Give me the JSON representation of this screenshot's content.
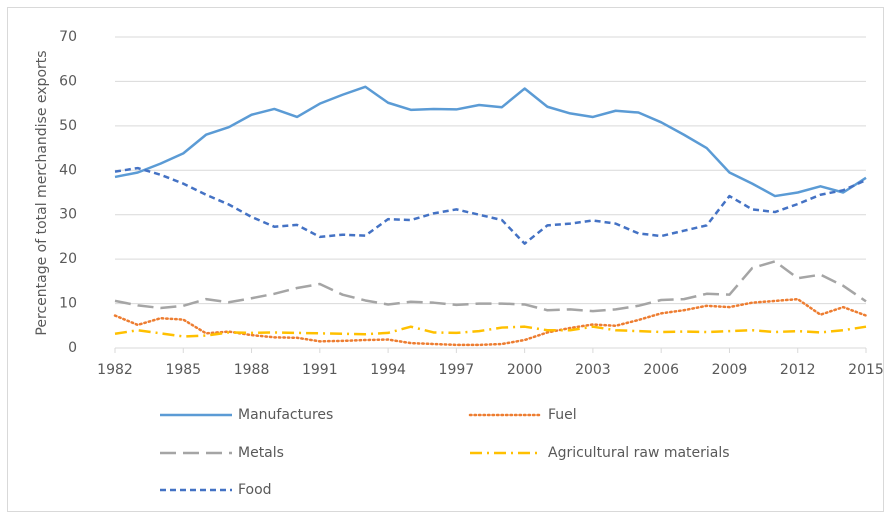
{
  "chart_data": {
    "type": "line",
    "y_label": "Percentage of total merchandise exports",
    "x": [
      1982,
      1983,
      1984,
      1985,
      1986,
      1987,
      1988,
      1989,
      1990,
      1991,
      1992,
      1993,
      1994,
      1995,
      1996,
      1997,
      1998,
      1999,
      2000,
      2001,
      2002,
      2003,
      2004,
      2005,
      2006,
      2007,
      2008,
      2009,
      2010,
      2011,
      2012,
      2013,
      2014,
      2015
    ],
    "xlim": [
      1982,
      2015
    ],
    "xticks": [
      1982,
      1985,
      1988,
      1991,
      1994,
      1997,
      2000,
      2003,
      2006,
      2009,
      2012,
      2015
    ],
    "ylim": [
      0,
      70
    ],
    "yticks": [
      0,
      10,
      20,
      30,
      40,
      50,
      60,
      70
    ],
    "grid": true,
    "legend": "bottom",
    "series": [
      {
        "name": "Manufactures",
        "color": "#5b9bd5",
        "dash": "solid",
        "values": [
          38.5,
          39.5,
          41.5,
          43.8,
          48,
          49.7,
          52.5,
          53.8,
          52,
          55,
          57,
          58.8,
          55.2,
          53.6,
          53.8,
          53.7,
          54.7,
          54.2,
          58.4,
          54.3,
          52.8,
          52,
          53.4,
          53,
          50.8,
          48,
          45,
          39.5,
          37,
          34.2,
          35,
          36.4,
          35,
          38.3
        ]
      },
      {
        "name": "Fuel",
        "color": "#ed7d31",
        "dash": "dotted",
        "values": [
          7.3,
          5.2,
          6.7,
          6.4,
          3.3,
          3.7,
          2.9,
          2.4,
          2.3,
          1.5,
          1.6,
          1.8,
          1.9,
          1.1,
          0.9,
          0.7,
          0.7,
          0.9,
          1.8,
          3.5,
          4.5,
          5.3,
          5,
          6.3,
          7.8,
          8.5,
          9.5,
          9.2,
          10.2,
          10.6,
          11,
          7.5,
          9.2,
          7.3
        ]
      },
      {
        "name": "Metals",
        "color": "#a5a5a5",
        "dash": "long-dash",
        "values": [
          10.6,
          9.6,
          9,
          9.5,
          11,
          10.3,
          11.2,
          12.2,
          13.5,
          14.4,
          12,
          10.7,
          9.8,
          10.4,
          10.2,
          9.7,
          10,
          10,
          9.8,
          8.5,
          8.7,
          8.3,
          8.7,
          9.5,
          10.8,
          11,
          12.2,
          12,
          18,
          19.5,
          15.7,
          16.5,
          14,
          10.5
        ]
      },
      {
        "name": "Agricultural raw materials",
        "color": "#ffc000",
        "dash": "dash-dot",
        "values": [
          3.2,
          4,
          3.3,
          2.6,
          2.8,
          3.5,
          3.4,
          3.5,
          3.4,
          3.3,
          3.2,
          3.1,
          3.4,
          4.8,
          3.5,
          3.4,
          3.8,
          4.6,
          4.8,
          4,
          4,
          4.8,
          4,
          3.8,
          3.6,
          3.7,
          3.6,
          3.8,
          4,
          3.6,
          3.8,
          3.5,
          4,
          4.8
        ]
      },
      {
        "name": "Food",
        "color": "#4472c4",
        "dash": "dash",
        "values": [
          39.7,
          40.5,
          39,
          37,
          34.5,
          32.3,
          29.5,
          27.3,
          27.7,
          25,
          25.5,
          25.3,
          29,
          28.8,
          30.3,
          31.2,
          30,
          28.8,
          23.5,
          27.6,
          28,
          28.7,
          28,
          25.8,
          25.2,
          26.4,
          27.6,
          34.2,
          31.2,
          30.6,
          32.4,
          34.5,
          35.5,
          37.8
        ]
      }
    ]
  }
}
